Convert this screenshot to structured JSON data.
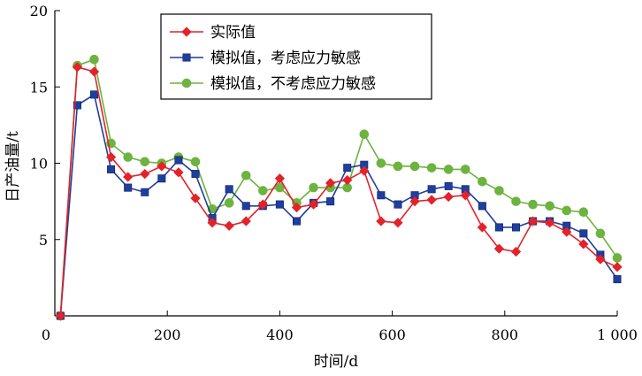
{
  "chart_data": {
    "type": "line",
    "xlabel": "时间/d",
    "ylabel": "日产油量/t",
    "xlim": [
      0,
      1000
    ],
    "ylim": [
      0,
      20
    ],
    "xticks": [
      0,
      200,
      400,
      600,
      800,
      1000
    ],
    "xtick_labels": [
      "0",
      "200",
      "400",
      "600",
      "800",
      "1 000"
    ],
    "yticks": [
      0,
      5,
      10,
      15,
      20
    ],
    "ytick_labels": [
      "",
      "5",
      "10",
      "15",
      "20"
    ],
    "grid": false,
    "legend_position": "top-right",
    "series": [
      {
        "name": "实际值",
        "color": "#e3222a",
        "marker": "diamond",
        "x": [
          10,
          40,
          70,
          100,
          130,
          160,
          190,
          220,
          250,
          280,
          310,
          340,
          370,
          400,
          430,
          460,
          490,
          520,
          550,
          580,
          610,
          640,
          670,
          700,
          730,
          760,
          790,
          820,
          850,
          880,
          910,
          940,
          970,
          1000
        ],
        "y": [
          0,
          16.3,
          16.0,
          10.4,
          9.1,
          9.3,
          9.8,
          9.4,
          7.7,
          6.1,
          5.9,
          6.2,
          7.3,
          9.0,
          7.1,
          7.3,
          8.7,
          8.9,
          9.5,
          6.2,
          6.1,
          7.5,
          7.6,
          7.8,
          7.9,
          5.8,
          4.4,
          4.2,
          6.2,
          6.1,
          5.5,
          4.7,
          3.7,
          3.2
        ]
      },
      {
        "name": "模拟值，考虑应力敏感",
        "color": "#1f3f9e",
        "marker": "square",
        "x": [
          10,
          40,
          70,
          100,
          130,
          160,
          190,
          220,
          250,
          280,
          310,
          340,
          370,
          400,
          430,
          460,
          490,
          520,
          550,
          580,
          610,
          640,
          670,
          700,
          730,
          760,
          790,
          820,
          850,
          880,
          910,
          940,
          970,
          1000
        ],
        "y": [
          0,
          13.8,
          14.5,
          9.6,
          8.4,
          8.1,
          9.0,
          10.2,
          9.3,
          6.4,
          8.3,
          7.2,
          7.2,
          7.3,
          6.2,
          7.4,
          7.5,
          9.7,
          9.9,
          7.9,
          7.3,
          7.9,
          8.3,
          8.5,
          8.3,
          7.2,
          5.8,
          5.8,
          6.2,
          6.2,
          5.9,
          5.4,
          4.0,
          2.4
        ]
      },
      {
        "name": "模拟值，不考虑应力敏感",
        "color": "#6db33f",
        "marker": "circle",
        "x": [
          10,
          40,
          70,
          100,
          130,
          160,
          190,
          220,
          250,
          280,
          310,
          340,
          370,
          400,
          430,
          460,
          490,
          520,
          550,
          580,
          610,
          640,
          670,
          700,
          730,
          760,
          790,
          820,
          850,
          880,
          910,
          940,
          970,
          1000
        ],
        "y": [
          0,
          16.4,
          16.8,
          11.3,
          10.4,
          10.1,
          10.0,
          10.4,
          10.1,
          7.0,
          7.4,
          9.2,
          8.2,
          8.4,
          7.4,
          8.4,
          8.4,
          8.4,
          11.9,
          10.0,
          9.8,
          9.8,
          9.7,
          9.6,
          9.6,
          8.8,
          8.2,
          7.5,
          7.3,
          7.2,
          6.9,
          6.8,
          5.4,
          3.8
        ]
      }
    ]
  }
}
